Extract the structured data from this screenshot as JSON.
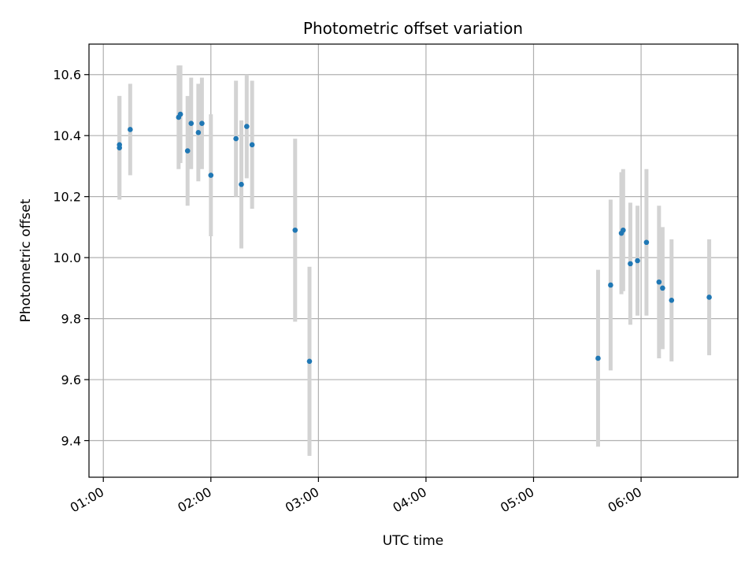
{
  "chart_data": {
    "type": "scatter",
    "title": "Photometric offset variation",
    "xlabel": "UTC time",
    "ylabel": "Photometric offset",
    "grid": true,
    "xlim": [
      "00:52",
      "06:54"
    ],
    "ylim": [
      9.28,
      10.7
    ],
    "x_ticks": [
      "01:00",
      "02:00",
      "03:00",
      "04:00",
      "05:00",
      "06:00"
    ],
    "y_ticks": [
      9.4,
      9.6,
      9.8,
      10.0,
      10.2,
      10.4,
      10.6
    ],
    "y_tick_labels": [
      "9.4",
      "9.6",
      "9.8",
      "10.0",
      "10.2",
      "10.4",
      "10.6"
    ],
    "colors": {
      "point": "#1f77b4",
      "errorbar": "#d3d3d3",
      "grid": "#b0b0b0"
    },
    "series": [
      {
        "points": [
          {
            "x": "01:09",
            "y": 10.36,
            "yerr": 0.17
          },
          {
            "x": "01:09",
            "y": 10.37,
            "yerr": 0.16
          },
          {
            "x": "01:15",
            "y": 10.42,
            "yerr": 0.15
          },
          {
            "x": "01:42",
            "y": 10.46,
            "yerr": 0.17
          },
          {
            "x": "01:43",
            "y": 10.47,
            "yerr": 0.16
          },
          {
            "x": "01:47",
            "y": 10.35,
            "yerr": 0.18
          },
          {
            "x": "01:49",
            "y": 10.44,
            "yerr": 0.15
          },
          {
            "x": "01:53",
            "y": 10.41,
            "yerr": 0.16
          },
          {
            "x": "01:55",
            "y": 10.44,
            "yerr": 0.15
          },
          {
            "x": "02:00",
            "y": 10.27,
            "yerr": 0.2
          },
          {
            "x": "02:14",
            "y": 10.39,
            "yerr": 0.19
          },
          {
            "x": "02:17",
            "y": 10.24,
            "yerr": 0.21
          },
          {
            "x": "02:20",
            "y": 10.43,
            "yerr": 0.17
          },
          {
            "x": "02:23",
            "y": 10.37,
            "yerr": 0.21
          },
          {
            "x": "02:47",
            "y": 10.09,
            "yerr": 0.3
          },
          {
            "x": "02:55",
            "y": 9.66,
            "yerr": 0.31
          },
          {
            "x": "05:36",
            "y": 9.67,
            "yerr": 0.29
          },
          {
            "x": "05:43",
            "y": 9.91,
            "yerr": 0.28
          },
          {
            "x": "05:49",
            "y": 10.08,
            "yerr": 0.2
          },
          {
            "x": "05:50",
            "y": 10.09,
            "yerr": 0.2
          },
          {
            "x": "05:54",
            "y": 9.98,
            "yerr": 0.2
          },
          {
            "x": "05:58",
            "y": 9.99,
            "yerr": 0.18
          },
          {
            "x": "06:03",
            "y": 10.05,
            "yerr": 0.24
          },
          {
            "x": "06:10",
            "y": 9.92,
            "yerr": 0.25
          },
          {
            "x": "06:12",
            "y": 9.9,
            "yerr": 0.2
          },
          {
            "x": "06:17",
            "y": 9.86,
            "yerr": 0.2
          },
          {
            "x": "06:38",
            "y": 9.87,
            "yerr": 0.19
          }
        ]
      }
    ]
  }
}
